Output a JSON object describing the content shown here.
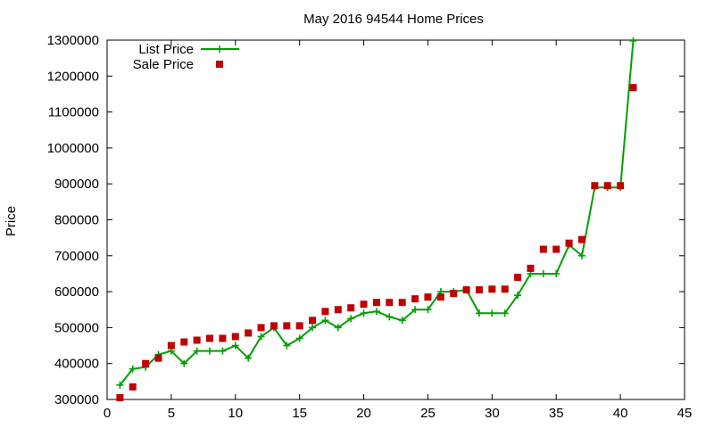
{
  "chart_data": {
    "type": "line",
    "title": "May 2016 94544 Home Prices",
    "xlabel": "",
    "ylabel": "Price",
    "xlim": [
      0,
      45
    ],
    "ylim": [
      300000,
      1300000
    ],
    "xticks": [
      "0",
      "5",
      "10",
      "15",
      "20",
      "25",
      "30",
      "35",
      "40",
      "45"
    ],
    "yticks": [
      "300000",
      "400000",
      "500000",
      "600000",
      "700000",
      "800000",
      "900000",
      "1000000",
      "1100000",
      "1200000",
      "1300000"
    ],
    "grid": false,
    "legend_position": "top-left",
    "series": [
      {
        "name": "List Price",
        "style": "line+cross",
        "color": "#00a000",
        "x": [
          1,
          2,
          3,
          4,
          5,
          6,
          7,
          8,
          9,
          10,
          11,
          12,
          13,
          14,
          15,
          16,
          17,
          18,
          19,
          20,
          21,
          22,
          23,
          24,
          25,
          26,
          27,
          28,
          29,
          30,
          31,
          32,
          33,
          34,
          35,
          36,
          37,
          38,
          39,
          40,
          41
        ],
        "values": [
          340000,
          385000,
          390000,
          425000,
          435000,
          400000,
          435000,
          435000,
          435000,
          450000,
          415000,
          475000,
          500000,
          450000,
          470000,
          500000,
          520000,
          500000,
          525000,
          540000,
          545000,
          530000,
          520000,
          550000,
          550000,
          600000,
          600000,
          605000,
          540000,
          540000,
          540000,
          590000,
          650000,
          650000,
          650000,
          730000,
          700000,
          890000,
          890000,
          890000,
          1298000
        ]
      },
      {
        "name": "Sale Price",
        "style": "square",
        "color": "#c00000",
        "x": [
          1,
          2,
          3,
          4,
          5,
          6,
          7,
          8,
          9,
          10,
          11,
          12,
          13,
          14,
          15,
          16,
          17,
          18,
          19,
          20,
          21,
          22,
          23,
          24,
          25,
          26,
          27,
          28,
          29,
          30,
          31,
          32,
          33,
          34,
          35,
          36,
          37,
          38,
          39,
          40,
          41
        ],
        "values": [
          305000,
          335000,
          400000,
          415000,
          450000,
          460000,
          465000,
          470000,
          470000,
          475000,
          485000,
          500000,
          505000,
          505000,
          505000,
          520000,
          545000,
          550000,
          555000,
          565000,
          570000,
          570000,
          570000,
          580000,
          585000,
          585000,
          595000,
          605000,
          605000,
          607000,
          607000,
          640000,
          665000,
          718000,
          718000,
          735000,
          745000,
          895000,
          895000,
          895000,
          1168000
        ]
      }
    ]
  }
}
